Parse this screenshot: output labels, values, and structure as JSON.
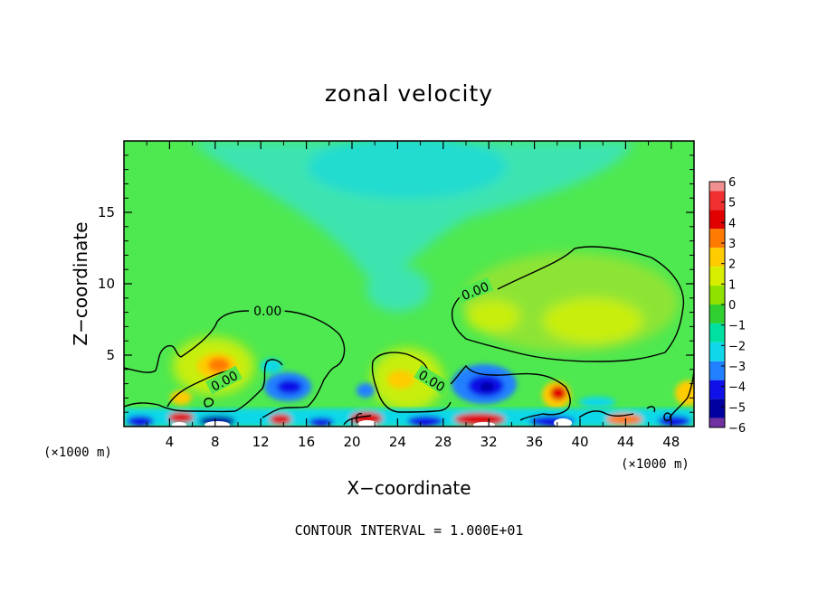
{
  "chart_data": {
    "type": "heatmap",
    "title": "zonal velocity",
    "xlabel": "X−coordinate",
    "ylabel": "Z−coordinate",
    "x_unit_left": "(×1000 m)",
    "x_unit_right": "(×1000 m)",
    "footer": "CONTOUR INTERVAL = 1.000E+01",
    "xlim": [
      0,
      50
    ],
    "ylim": [
      0,
      20
    ],
    "x_ticks": [
      4,
      8,
      12,
      16,
      20,
      24,
      28,
      32,
      36,
      40,
      44,
      48
    ],
    "x_tick_labels": [
      "4",
      "8",
      "12",
      "16",
      "20",
      "24",
      "28",
      "32",
      "36",
      "40",
      "44",
      "48"
    ],
    "y_ticks": [
      5,
      10,
      15
    ],
    "y_tick_labels": [
      "5",
      "10",
      "15"
    ],
    "contour_labels": [
      {
        "text": "0.00",
        "x": 12.6,
        "z": 8.1
      },
      {
        "text": "0.00",
        "x": 8.8,
        "z": 3.2
      },
      {
        "text": "0.00",
        "x": 30.8,
        "z": 9.5
      },
      {
        "text": "0.00",
        "x": 27.0,
        "z": 3.2
      }
    ],
    "colorbar": {
      "tick_labels": [
        "6",
        "5",
        "4",
        "3",
        "2",
        "1",
        "0",
        "−1",
        "−2",
        "−3",
        "−4",
        "−5",
        "−6"
      ],
      "values": [
        6,
        5,
        4,
        3,
        2,
        1,
        0,
        -1,
        -2,
        -3,
        -4,
        -5,
        -6
      ],
      "colors": [
        "#f09090",
        "#f03030",
        "#e00000",
        "#ff7a00",
        "#ffcc00",
        "#d8ee00",
        "#90e000",
        "#30d030",
        "#00e0a0",
        "#10d8e8",
        "#2080ff",
        "#1010e8",
        "#0000a0",
        "#7030a0"
      ]
    },
    "background_field": "zonal velocity near 0 (green) over most of domain; weaker negative (cyan) region aloft centered near x=24, z=17; positive core (yellow-green) near x=30-46, z=6-11; strong alternating positive/negative cells below z=5",
    "features": [
      {
        "kind": "positive",
        "x": 9,
        "z": 4.3,
        "value": 3.5
      },
      {
        "kind": "positive",
        "x": 6,
        "z": 2.5,
        "value": 2.5
      },
      {
        "kind": "negative",
        "x": 14,
        "z": 2.8,
        "value": -4.5
      },
      {
        "kind": "positive",
        "x": 24,
        "z": 3.0,
        "value": 2
      },
      {
        "kind": "negative",
        "x": 32,
        "z": 3.0,
        "value": -5
      },
      {
        "kind": "positive",
        "x": 38,
        "z": 2.4,
        "value": 3.8
      },
      {
        "kind": "positive",
        "x": 36,
        "z": 7.6,
        "value": 1.5
      },
      {
        "kind": "positive",
        "x": 42,
        "z": 7.4,
        "value": 1.6
      },
      {
        "kind": "negative",
        "x": 23,
        "z": 17,
        "value": -2.2
      }
    ]
  }
}
